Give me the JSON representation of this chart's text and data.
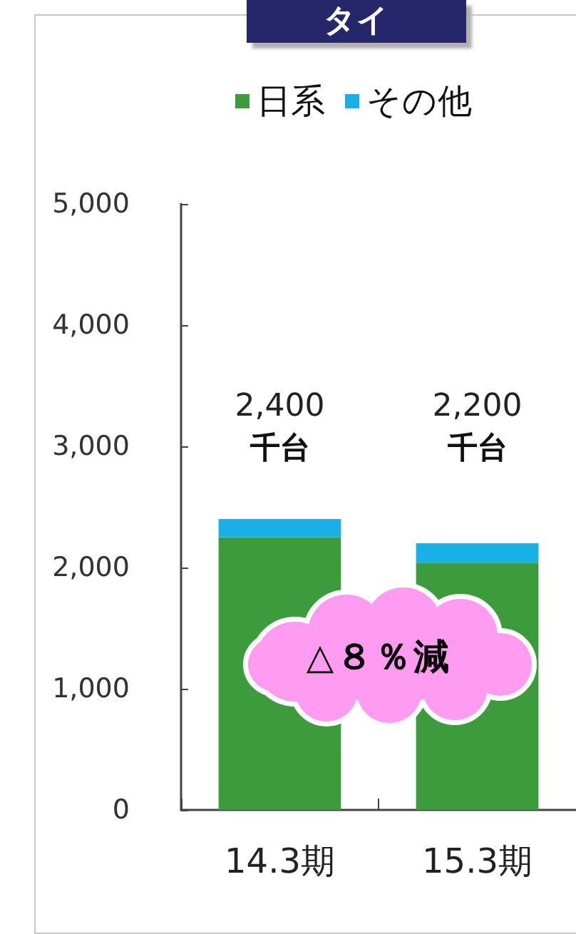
{
  "chart_data": {
    "type": "bar",
    "title": "タイ",
    "categories": [
      "14.3期",
      "15.3期"
    ],
    "series": [
      {
        "name": "日系",
        "color": "#3c9c3c",
        "values": [
          2250,
          2040
        ]
      },
      {
        "name": "その他",
        "color": "#18b0e6",
        "values": [
          150,
          160
        ]
      }
    ],
    "stacked": true,
    "ylim": [
      0,
      5000
    ],
    "yticks": [
      0,
      {
        "value": 1000,
        "label": "1,000"
      },
      {
        "value": 2000,
        "label": "2,000"
      },
      {
        "value": 3000,
        "label": "3,000"
      },
      {
        "value": 4000,
        "label": "4,000"
      },
      {
        "value": 5000,
        "label": "5,000"
      }
    ],
    "totals": [
      "2,400\n千台",
      "2,200\n千台"
    ],
    "annotations": [
      "△８％減"
    ],
    "legend": "top"
  }
}
